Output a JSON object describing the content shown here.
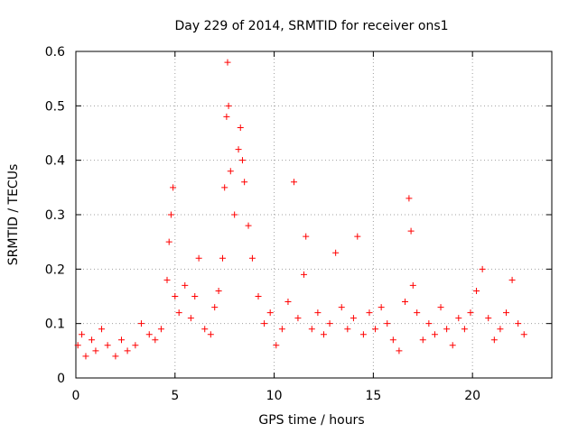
{
  "chart_data": {
    "type": "scatter",
    "title": "Day 229 of 2014, SRMTID for receiver ons1",
    "xlabel": "GPS time / hours",
    "ylabel": "SRMTID / TECUs",
    "xlim": [
      0,
      24
    ],
    "ylim": [
      0,
      0.6
    ],
    "xticks": [
      0,
      5,
      10,
      15,
      20
    ],
    "yticks": [
      0,
      0.1,
      0.2,
      0.3,
      0.4,
      0.5,
      0.6
    ],
    "ytick_labels": [
      "0",
      "0.1",
      "0.2",
      "0.3",
      "0.4",
      "0.5",
      "0.6"
    ],
    "grid": true,
    "marker": "+",
    "color": "#ff0000",
    "data_range_hours": [
      0,
      22.7
    ],
    "series": [
      {
        "name": "SRMTID",
        "points": [
          [
            0.1,
            0.06
          ],
          [
            0.3,
            0.08
          ],
          [
            0.5,
            0.04
          ],
          [
            0.8,
            0.07
          ],
          [
            1.0,
            0.05
          ],
          [
            1.3,
            0.09
          ],
          [
            1.6,
            0.06
          ],
          [
            2.0,
            0.04
          ],
          [
            2.3,
            0.07
          ],
          [
            2.6,
            0.05
          ],
          [
            3.0,
            0.06
          ],
          [
            3.3,
            0.1
          ],
          [
            3.7,
            0.08
          ],
          [
            4.0,
            0.07
          ],
          [
            4.3,
            0.09
          ],
          [
            4.6,
            0.18
          ],
          [
            4.7,
            0.25
          ],
          [
            4.8,
            0.3
          ],
          [
            4.9,
            0.35
          ],
          [
            5.0,
            0.15
          ],
          [
            5.2,
            0.12
          ],
          [
            5.5,
            0.17
          ],
          [
            5.8,
            0.11
          ],
          [
            6.0,
            0.15
          ],
          [
            6.2,
            0.22
          ],
          [
            6.5,
            0.09
          ],
          [
            6.8,
            0.08
          ],
          [
            7.0,
            0.13
          ],
          [
            7.2,
            0.16
          ],
          [
            7.4,
            0.22
          ],
          [
            7.5,
            0.35
          ],
          [
            7.6,
            0.48
          ],
          [
            7.65,
            0.58
          ],
          [
            7.7,
            0.5
          ],
          [
            7.8,
            0.38
          ],
          [
            8.0,
            0.3
          ],
          [
            8.2,
            0.42
          ],
          [
            8.3,
            0.46
          ],
          [
            8.4,
            0.4
          ],
          [
            8.5,
            0.36
          ],
          [
            8.7,
            0.28
          ],
          [
            8.9,
            0.22
          ],
          [
            9.2,
            0.15
          ],
          [
            9.5,
            0.1
          ],
          [
            9.8,
            0.12
          ],
          [
            10.1,
            0.06
          ],
          [
            10.4,
            0.09
          ],
          [
            10.7,
            0.14
          ],
          [
            11.0,
            0.36
          ],
          [
            11.2,
            0.11
          ],
          [
            11.5,
            0.19
          ],
          [
            11.6,
            0.26
          ],
          [
            11.9,
            0.09
          ],
          [
            12.2,
            0.12
          ],
          [
            12.5,
            0.08
          ],
          [
            12.8,
            0.1
          ],
          [
            13.1,
            0.23
          ],
          [
            13.4,
            0.13
          ],
          [
            13.7,
            0.09
          ],
          [
            14.0,
            0.11
          ],
          [
            14.2,
            0.26
          ],
          [
            14.5,
            0.08
          ],
          [
            14.8,
            0.12
          ],
          [
            15.1,
            0.09
          ],
          [
            15.4,
            0.13
          ],
          [
            15.7,
            0.1
          ],
          [
            16.0,
            0.07
          ],
          [
            16.3,
            0.05
          ],
          [
            16.6,
            0.14
          ],
          [
            16.8,
            0.33
          ],
          [
            16.9,
            0.27
          ],
          [
            17.0,
            0.17
          ],
          [
            17.2,
            0.12
          ],
          [
            17.5,
            0.07
          ],
          [
            17.8,
            0.1
          ],
          [
            18.1,
            0.08
          ],
          [
            18.4,
            0.13
          ],
          [
            18.7,
            0.09
          ],
          [
            19.0,
            0.06
          ],
          [
            19.3,
            0.11
          ],
          [
            19.6,
            0.09
          ],
          [
            19.9,
            0.12
          ],
          [
            20.2,
            0.16
          ],
          [
            20.5,
            0.2
          ],
          [
            20.8,
            0.11
          ],
          [
            21.1,
            0.07
          ],
          [
            21.4,
            0.09
          ],
          [
            21.7,
            0.12
          ],
          [
            22.0,
            0.18
          ],
          [
            22.3,
            0.1
          ],
          [
            22.6,
            0.08
          ]
        ]
      }
    ]
  }
}
